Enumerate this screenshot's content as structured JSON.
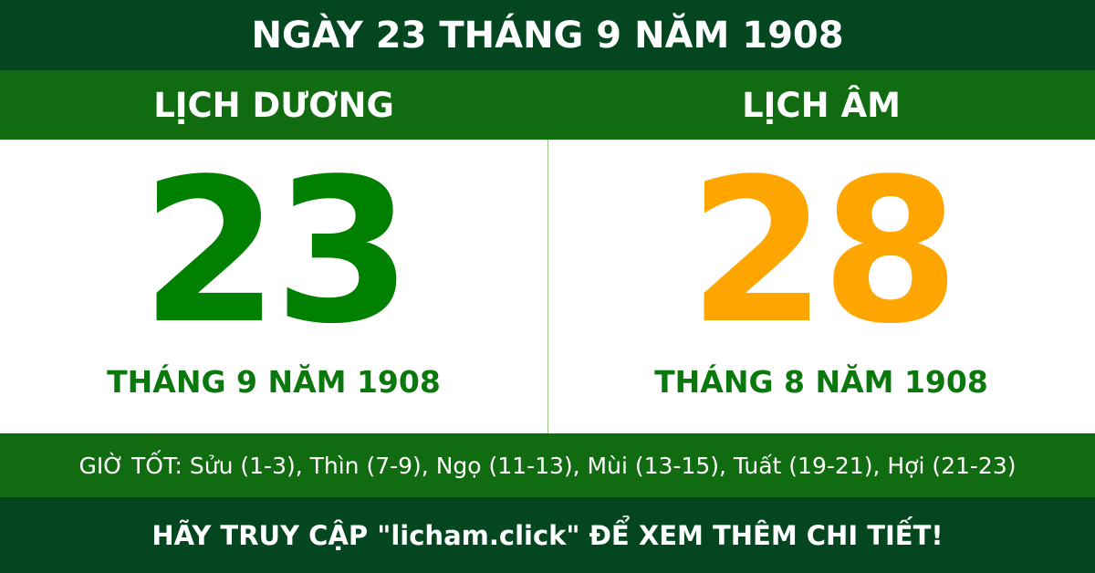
{
  "header": {
    "title": "NGÀY 23 THÁNG 9 NĂM 1908"
  },
  "solar": {
    "label": "LỊCH DƯƠNG",
    "day": "23",
    "month_year": "THÁNG 9 NĂM 1908",
    "color": "#008000"
  },
  "lunar": {
    "label": "LỊCH ÂM",
    "day": "28",
    "month_year": "THÁNG 8 NĂM 1908",
    "color": "#ffa500"
  },
  "good_hours": "GIỜ TỐT: Sửu (1-3), Thìn (7-9), Ngọ (11-13), Mùi (13-15), Tuất (19-21), Hợi (21-23)",
  "footer": {
    "text": "HÃY TRUY CẬP \"licham.click\" ĐỂ XEM THÊM CHI TIẾT!"
  },
  "colors": {
    "dark_green": "#03461f",
    "green": "#116b10"
  }
}
